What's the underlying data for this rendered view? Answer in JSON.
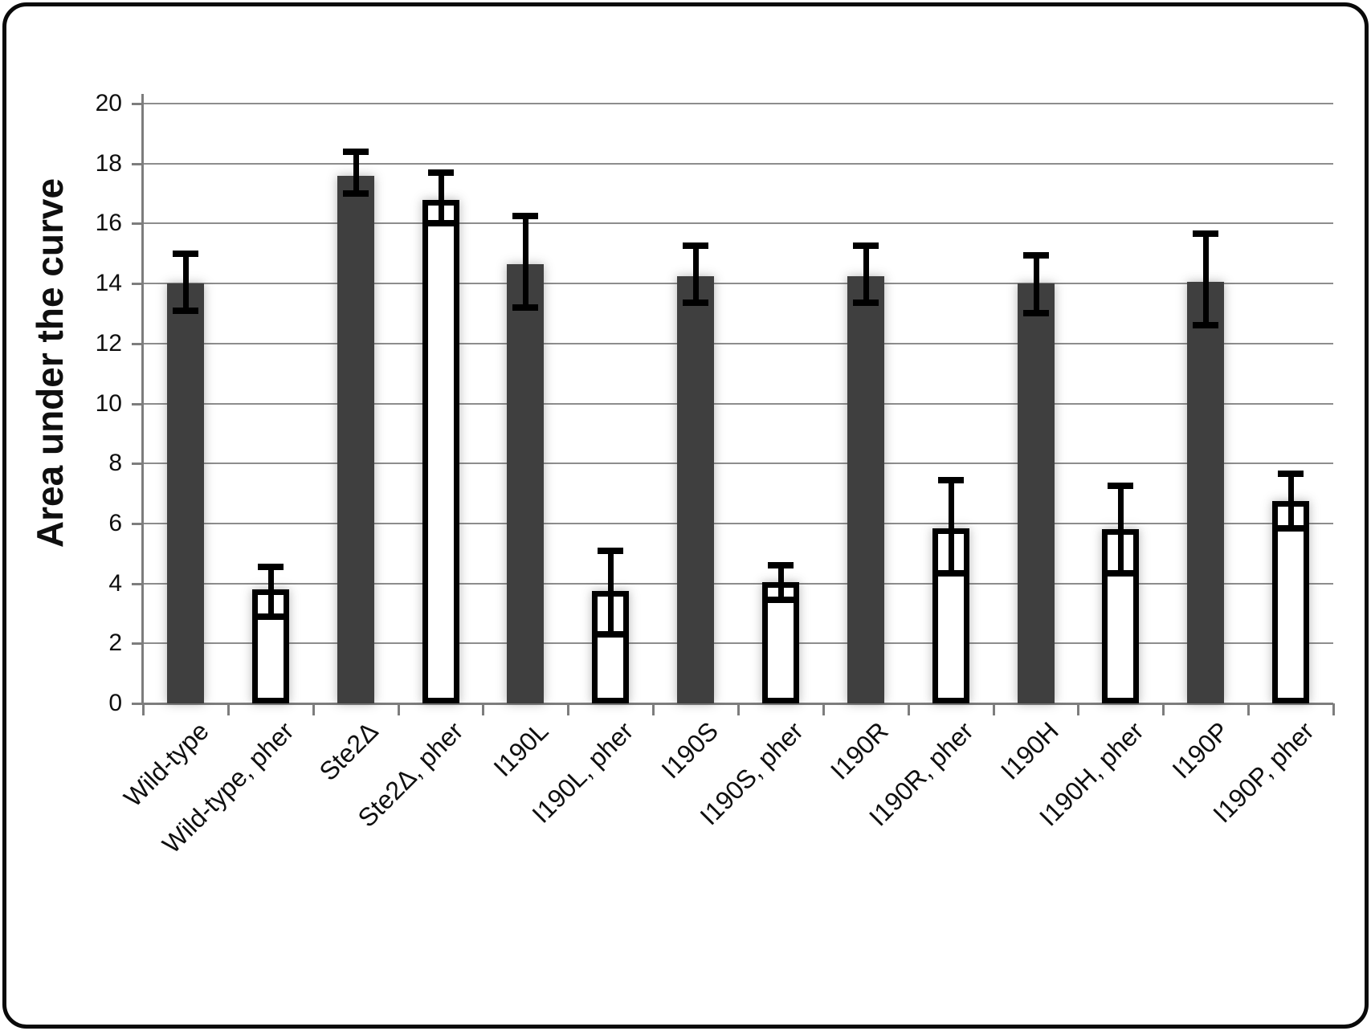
{
  "figure": {
    "background": "#ffffff",
    "frame_color": "#0a0a0a"
  },
  "chart_data": {
    "type": "bar",
    "title": "",
    "xlabel": "",
    "ylabel": "Area under the curve",
    "ylim": [
      0,
      20
    ],
    "yticks": [
      0,
      2,
      4,
      6,
      8,
      10,
      12,
      14,
      16,
      18,
      20
    ],
    "grid": true,
    "legend_position": "none",
    "colors": {
      "dark_bar": "#3f3f3f",
      "light_bar": "#ffffff",
      "error_bar": "#000000",
      "gridline": "#8d8d8d",
      "axis": "#7d7d7d"
    },
    "categories": [
      "Wild-type",
      "Wild-type, pher",
      "Ste2Δ",
      "Ste2Δ, pher",
      "I190L",
      "I190L, pher",
      "I190S",
      "I190S, pher",
      "I190R",
      "I190R, pher",
      "I190H",
      "I190H, pher",
      "I190P",
      "I190P, pher"
    ],
    "bar_style": [
      "dark",
      "light",
      "dark",
      "light",
      "dark",
      "light",
      "dark",
      "light",
      "dark",
      "light",
      "dark",
      "light",
      "dark",
      "light"
    ],
    "values": [
      14.0,
      3.8,
      17.6,
      16.8,
      14.65,
      3.75,
      14.25,
      4.05,
      14.25,
      5.85,
      14.0,
      5.8,
      14.05,
      6.75
    ],
    "error_high": [
      15.0,
      4.55,
      18.4,
      17.7,
      16.25,
      5.1,
      15.25,
      4.6,
      15.25,
      7.45,
      14.95,
      7.25,
      15.65,
      7.65
    ],
    "error_low": [
      13.1,
      2.9,
      17.0,
      16.0,
      13.2,
      2.3,
      13.35,
      3.45,
      13.35,
      4.35,
      13.0,
      4.35,
      12.6,
      5.85
    ]
  }
}
